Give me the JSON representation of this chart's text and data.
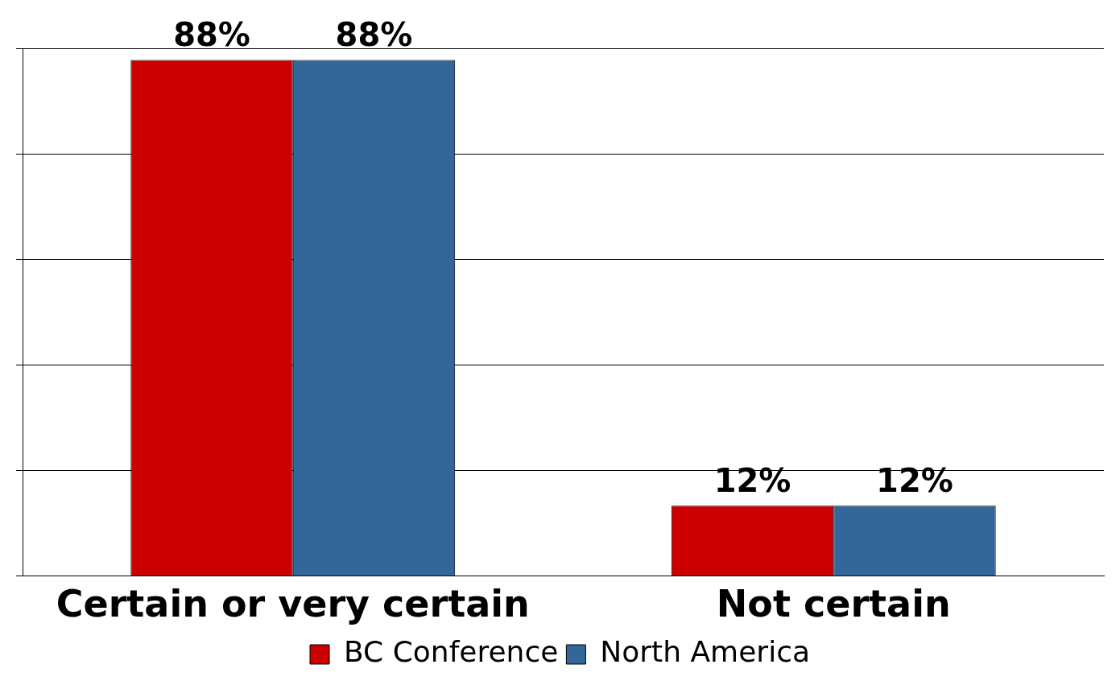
{
  "chart_data": {
    "type": "bar",
    "categories": [
      "Certain or very certain",
      "Not certain"
    ],
    "series": [
      {
        "name": "BC Conference",
        "color": "#cc0000",
        "values": [
          88,
          12
        ],
        "value_labels": [
          "88%",
          "12%"
        ]
      },
      {
        "name": "North America",
        "color": "#336699",
        "values": [
          88,
          12
        ],
        "value_labels": [
          "88%",
          "12%"
        ]
      }
    ],
    "tick_labels": "x",
    "grid": "y",
    "legend": "bottom"
  }
}
